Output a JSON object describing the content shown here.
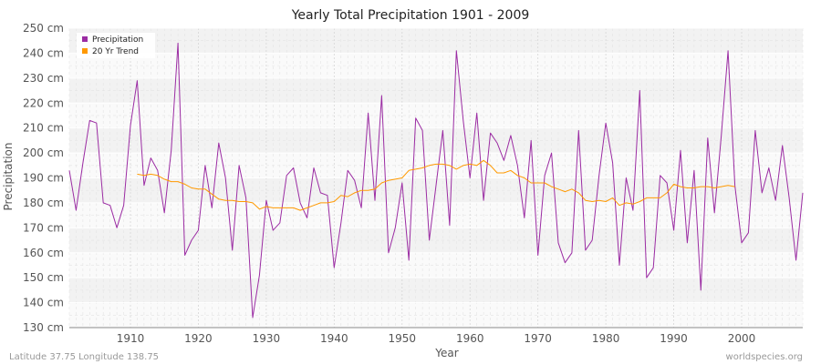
{
  "chart_data": {
    "type": "line",
    "title": "Yearly Total Precipitation 1901 - 2009",
    "xlabel": "Year",
    "ylabel": "Precipitation",
    "xlim": [
      1901,
      2009
    ],
    "ylim": [
      130,
      250
    ],
    "y_unit": "cm",
    "x_ticks": [
      1910,
      1920,
      1930,
      1940,
      1950,
      1960,
      1970,
      1980,
      1990,
      2000
    ],
    "y_ticks": [
      130,
      140,
      150,
      160,
      170,
      180,
      190,
      200,
      210,
      220,
      230,
      240,
      250
    ],
    "y_tick_labels": [
      "130 cm",
      "140 cm",
      "150 cm",
      "160 cm",
      "170 cm",
      "180 cm",
      "190 cm",
      "200 cm",
      "210 cm",
      "220 cm",
      "230 cm",
      "240 cm",
      "250 cm"
    ],
    "grid": true,
    "legend_position": "top-left",
    "series": [
      {
        "name": "Precipitation",
        "color": "#9b2ca3",
        "x": [
          1901,
          1902,
          1903,
          1904,
          1905,
          1906,
          1907,
          1908,
          1909,
          1910,
          1911,
          1912,
          1913,
          1914,
          1915,
          1916,
          1917,
          1918,
          1919,
          1920,
          1921,
          1922,
          1923,
          1924,
          1925,
          1926,
          1927,
          1928,
          1929,
          1930,
          1931,
          1932,
          1933,
          1934,
          1935,
          1936,
          1937,
          1938,
          1939,
          1940,
          1941,
          1942,
          1943,
          1944,
          1945,
          1946,
          1947,
          1948,
          1949,
          1950,
          1951,
          1952,
          1953,
          1954,
          1955,
          1956,
          1957,
          1958,
          1959,
          1960,
          1961,
          1962,
          1963,
          1964,
          1965,
          1966,
          1967,
          1968,
          1969,
          1970,
          1971,
          1972,
          1973,
          1974,
          1975,
          1976,
          1977,
          1978,
          1979,
          1980,
          1981,
          1982,
          1983,
          1984,
          1985,
          1986,
          1987,
          1988,
          1989,
          1990,
          1991,
          1992,
          1993,
          1994,
          1995,
          1996,
          1997,
          1998,
          1999,
          2000,
          2001,
          2002,
          2003,
          2004,
          2005,
          2006,
          2007,
          2008,
          2009
        ],
        "values": [
          193,
          177,
          196,
          213,
          212,
          180,
          179,
          170,
          179,
          211,
          229,
          187,
          198,
          193,
          176,
          201,
          244,
          159,
          165,
          169,
          195,
          178,
          204,
          190,
          161,
          195,
          182,
          134,
          151,
          181,
          169,
          172,
          191,
          194,
          180,
          174,
          194,
          184,
          183,
          154,
          172,
          193,
          189,
          178,
          216,
          181,
          223,
          160,
          170,
          188,
          157,
          214,
          209,
          165,
          187,
          209,
          171,
          241,
          213,
          190,
          216,
          181,
          208,
          204,
          197,
          207,
          195,
          174,
          205,
          159,
          191,
          200,
          164,
          156,
          160,
          209,
          161,
          165,
          191,
          212,
          196,
          155,
          190,
          177,
          225,
          150,
          154,
          191,
          188,
          169,
          201,
          164,
          193,
          145,
          206,
          176,
          207,
          241,
          187,
          164,
          168,
          209,
          184,
          194,
          181,
          203,
          182,
          157,
          184
        ]
      },
      {
        "name": "20 Yr Trend",
        "color": "#ff9900",
        "x": [
          1911,
          1912,
          1913,
          1914,
          1915,
          1916,
          1917,
          1918,
          1919,
          1920,
          1921,
          1922,
          1923,
          1924,
          1925,
          1926,
          1927,
          1928,
          1929,
          1930,
          1931,
          1932,
          1933,
          1934,
          1935,
          1936,
          1937,
          1938,
          1939,
          1940,
          1941,
          1942,
          1943,
          1944,
          1945,
          1946,
          1947,
          1948,
          1949,
          1950,
          1951,
          1952,
          1953,
          1954,
          1955,
          1956,
          1957,
          1958,
          1959,
          1960,
          1961,
          1962,
          1963,
          1964,
          1965,
          1966,
          1967,
          1968,
          1969,
          1970,
          1971,
          1972,
          1973,
          1974,
          1975,
          1976,
          1977,
          1978,
          1979,
          1980,
          1981,
          1982,
          1983,
          1984,
          1985,
          1986,
          1987,
          1988,
          1989,
          1990,
          1991,
          1992,
          1993,
          1994,
          1995,
          1996,
          1997,
          1998,
          1999
        ],
        "values": [
          191.5,
          191,
          191.5,
          191,
          189.5,
          188.5,
          188.5,
          187.5,
          186,
          185.5,
          185.5,
          183.5,
          181.5,
          181,
          181,
          180.5,
          180.5,
          180,
          177.5,
          178.5,
          178,
          178,
          178,
          178,
          177,
          178,
          179,
          180,
          180,
          180.5,
          183,
          182.5,
          184,
          185,
          185,
          185.5,
          188,
          189,
          189.5,
          190,
          193,
          193.5,
          194,
          195,
          195.5,
          195.5,
          195,
          193.5,
          195,
          195.5,
          195,
          197,
          195,
          192,
          192,
          193,
          191,
          190,
          188,
          188,
          188,
          186.5,
          185.5,
          184.5,
          185.5,
          184,
          181,
          180.5,
          181,
          180.5,
          182,
          179,
          180,
          179.5,
          180.5,
          182,
          182,
          182,
          184,
          187.5,
          186.5,
          186,
          186,
          186.5,
          186.5,
          186,
          186.5,
          187,
          186.5
        ]
      }
    ]
  },
  "footer": {
    "left": "Latitude 37.75 Longitude 138.75",
    "right": "worldspecies.org"
  }
}
